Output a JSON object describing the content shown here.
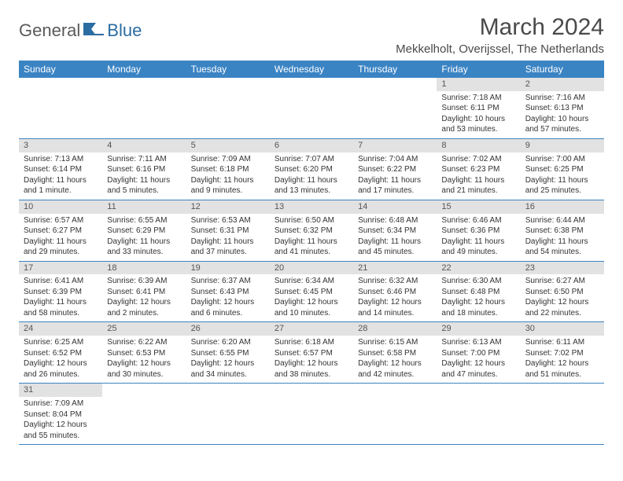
{
  "brand": {
    "part1": "General",
    "part2": "Blue"
  },
  "title": "March 2024",
  "location": "Mekkelholt, Overijssel, The Netherlands",
  "colors": {
    "header_bg": "#3b84c4",
    "header_text": "#ffffff",
    "daynum_bg": "#e2e2e2",
    "border": "#3b84c4",
    "brand_gray": "#5a5a5a",
    "brand_blue": "#2b6ca3"
  },
  "dayHeaders": [
    "Sunday",
    "Monday",
    "Tuesday",
    "Wednesday",
    "Thursday",
    "Friday",
    "Saturday"
  ],
  "weeks": [
    [
      null,
      null,
      null,
      null,
      null,
      {
        "n": "1",
        "sr": "7:18 AM",
        "ss": "6:11 PM",
        "dl": "10 hours and 53 minutes."
      },
      {
        "n": "2",
        "sr": "7:16 AM",
        "ss": "6:13 PM",
        "dl": "10 hours and 57 minutes."
      }
    ],
    [
      {
        "n": "3",
        "sr": "7:13 AM",
        "ss": "6:14 PM",
        "dl": "11 hours and 1 minute."
      },
      {
        "n": "4",
        "sr": "7:11 AM",
        "ss": "6:16 PM",
        "dl": "11 hours and 5 minutes."
      },
      {
        "n": "5",
        "sr": "7:09 AM",
        "ss": "6:18 PM",
        "dl": "11 hours and 9 minutes."
      },
      {
        "n": "6",
        "sr": "7:07 AM",
        "ss": "6:20 PM",
        "dl": "11 hours and 13 minutes."
      },
      {
        "n": "7",
        "sr": "7:04 AM",
        "ss": "6:22 PM",
        "dl": "11 hours and 17 minutes."
      },
      {
        "n": "8",
        "sr": "7:02 AM",
        "ss": "6:23 PM",
        "dl": "11 hours and 21 minutes."
      },
      {
        "n": "9",
        "sr": "7:00 AM",
        "ss": "6:25 PM",
        "dl": "11 hours and 25 minutes."
      }
    ],
    [
      {
        "n": "10",
        "sr": "6:57 AM",
        "ss": "6:27 PM",
        "dl": "11 hours and 29 minutes."
      },
      {
        "n": "11",
        "sr": "6:55 AM",
        "ss": "6:29 PM",
        "dl": "11 hours and 33 minutes."
      },
      {
        "n": "12",
        "sr": "6:53 AM",
        "ss": "6:31 PM",
        "dl": "11 hours and 37 minutes."
      },
      {
        "n": "13",
        "sr": "6:50 AM",
        "ss": "6:32 PM",
        "dl": "11 hours and 41 minutes."
      },
      {
        "n": "14",
        "sr": "6:48 AM",
        "ss": "6:34 PM",
        "dl": "11 hours and 45 minutes."
      },
      {
        "n": "15",
        "sr": "6:46 AM",
        "ss": "6:36 PM",
        "dl": "11 hours and 49 minutes."
      },
      {
        "n": "16",
        "sr": "6:44 AM",
        "ss": "6:38 PM",
        "dl": "11 hours and 54 minutes."
      }
    ],
    [
      {
        "n": "17",
        "sr": "6:41 AM",
        "ss": "6:39 PM",
        "dl": "11 hours and 58 minutes."
      },
      {
        "n": "18",
        "sr": "6:39 AM",
        "ss": "6:41 PM",
        "dl": "12 hours and 2 minutes."
      },
      {
        "n": "19",
        "sr": "6:37 AM",
        "ss": "6:43 PM",
        "dl": "12 hours and 6 minutes."
      },
      {
        "n": "20",
        "sr": "6:34 AM",
        "ss": "6:45 PM",
        "dl": "12 hours and 10 minutes."
      },
      {
        "n": "21",
        "sr": "6:32 AM",
        "ss": "6:46 PM",
        "dl": "12 hours and 14 minutes."
      },
      {
        "n": "22",
        "sr": "6:30 AM",
        "ss": "6:48 PM",
        "dl": "12 hours and 18 minutes."
      },
      {
        "n": "23",
        "sr": "6:27 AM",
        "ss": "6:50 PM",
        "dl": "12 hours and 22 minutes."
      }
    ],
    [
      {
        "n": "24",
        "sr": "6:25 AM",
        "ss": "6:52 PM",
        "dl": "12 hours and 26 minutes."
      },
      {
        "n": "25",
        "sr": "6:22 AM",
        "ss": "6:53 PM",
        "dl": "12 hours and 30 minutes."
      },
      {
        "n": "26",
        "sr": "6:20 AM",
        "ss": "6:55 PM",
        "dl": "12 hours and 34 minutes."
      },
      {
        "n": "27",
        "sr": "6:18 AM",
        "ss": "6:57 PM",
        "dl": "12 hours and 38 minutes."
      },
      {
        "n": "28",
        "sr": "6:15 AM",
        "ss": "6:58 PM",
        "dl": "12 hours and 42 minutes."
      },
      {
        "n": "29",
        "sr": "6:13 AM",
        "ss": "7:00 PM",
        "dl": "12 hours and 47 minutes."
      },
      {
        "n": "30",
        "sr": "6:11 AM",
        "ss": "7:02 PM",
        "dl": "12 hours and 51 minutes."
      }
    ],
    [
      {
        "n": "31",
        "sr": "7:09 AM",
        "ss": "8:04 PM",
        "dl": "12 hours and 55 minutes."
      },
      null,
      null,
      null,
      null,
      null,
      null
    ]
  ],
  "labels": {
    "sunrise": "Sunrise: ",
    "sunset": "Sunset: ",
    "daylight": "Daylight: "
  }
}
